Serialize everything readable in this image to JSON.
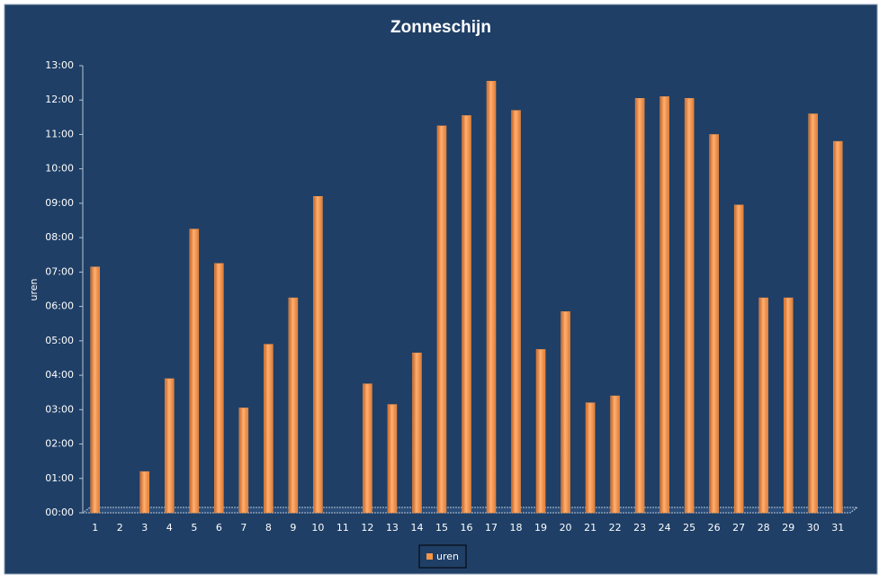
{
  "chart_data": {
    "type": "bar",
    "title": "Zonneschijn",
    "y_label": "uren",
    "categories": [
      "1",
      "2",
      "3",
      "4",
      "5",
      "6",
      "7",
      "8",
      "9",
      "10",
      "11",
      "12",
      "13",
      "14",
      "15",
      "16",
      "17",
      "18",
      "19",
      "20",
      "21",
      "22",
      "23",
      "24",
      "25",
      "26",
      "27",
      "28",
      "29",
      "30",
      "31"
    ],
    "series": [
      {
        "name": "uren",
        "color": "#f79646",
        "values": [
          7.15,
          0,
          1.2,
          3.9,
          8.25,
          7.25,
          3.05,
          4.9,
          6.25,
          9.2,
          0,
          3.75,
          3.15,
          4.65,
          11.25,
          11.55,
          12.55,
          11.7,
          4.75,
          5.85,
          3.2,
          3.4,
          12.05,
          12.1,
          12.05,
          11.0,
          8.95,
          6.25,
          6.25,
          11.6,
          10.8
        ]
      }
    ],
    "ylim": [
      0,
      13
    ],
    "yticks": [
      {
        "value": 0,
        "label": "00:00"
      },
      {
        "value": 1,
        "label": "01:00"
      },
      {
        "value": 2,
        "label": "02:00"
      },
      {
        "value": 3,
        "label": "03:00"
      },
      {
        "value": 4,
        "label": "04:00"
      },
      {
        "value": 5,
        "label": "05:00"
      },
      {
        "value": 6,
        "label": "06:00"
      },
      {
        "value": 7,
        "label": "07:00"
      },
      {
        "value": 8,
        "label": "08:00"
      },
      {
        "value": 9,
        "label": "09:00"
      },
      {
        "value": 10,
        "label": "10:00"
      },
      {
        "value": 11,
        "label": "11:00"
      },
      {
        "value": 12,
        "label": "12:00"
      },
      {
        "value": 13,
        "label": "13:00"
      }
    ],
    "grid": false,
    "legend": "bottom"
  }
}
